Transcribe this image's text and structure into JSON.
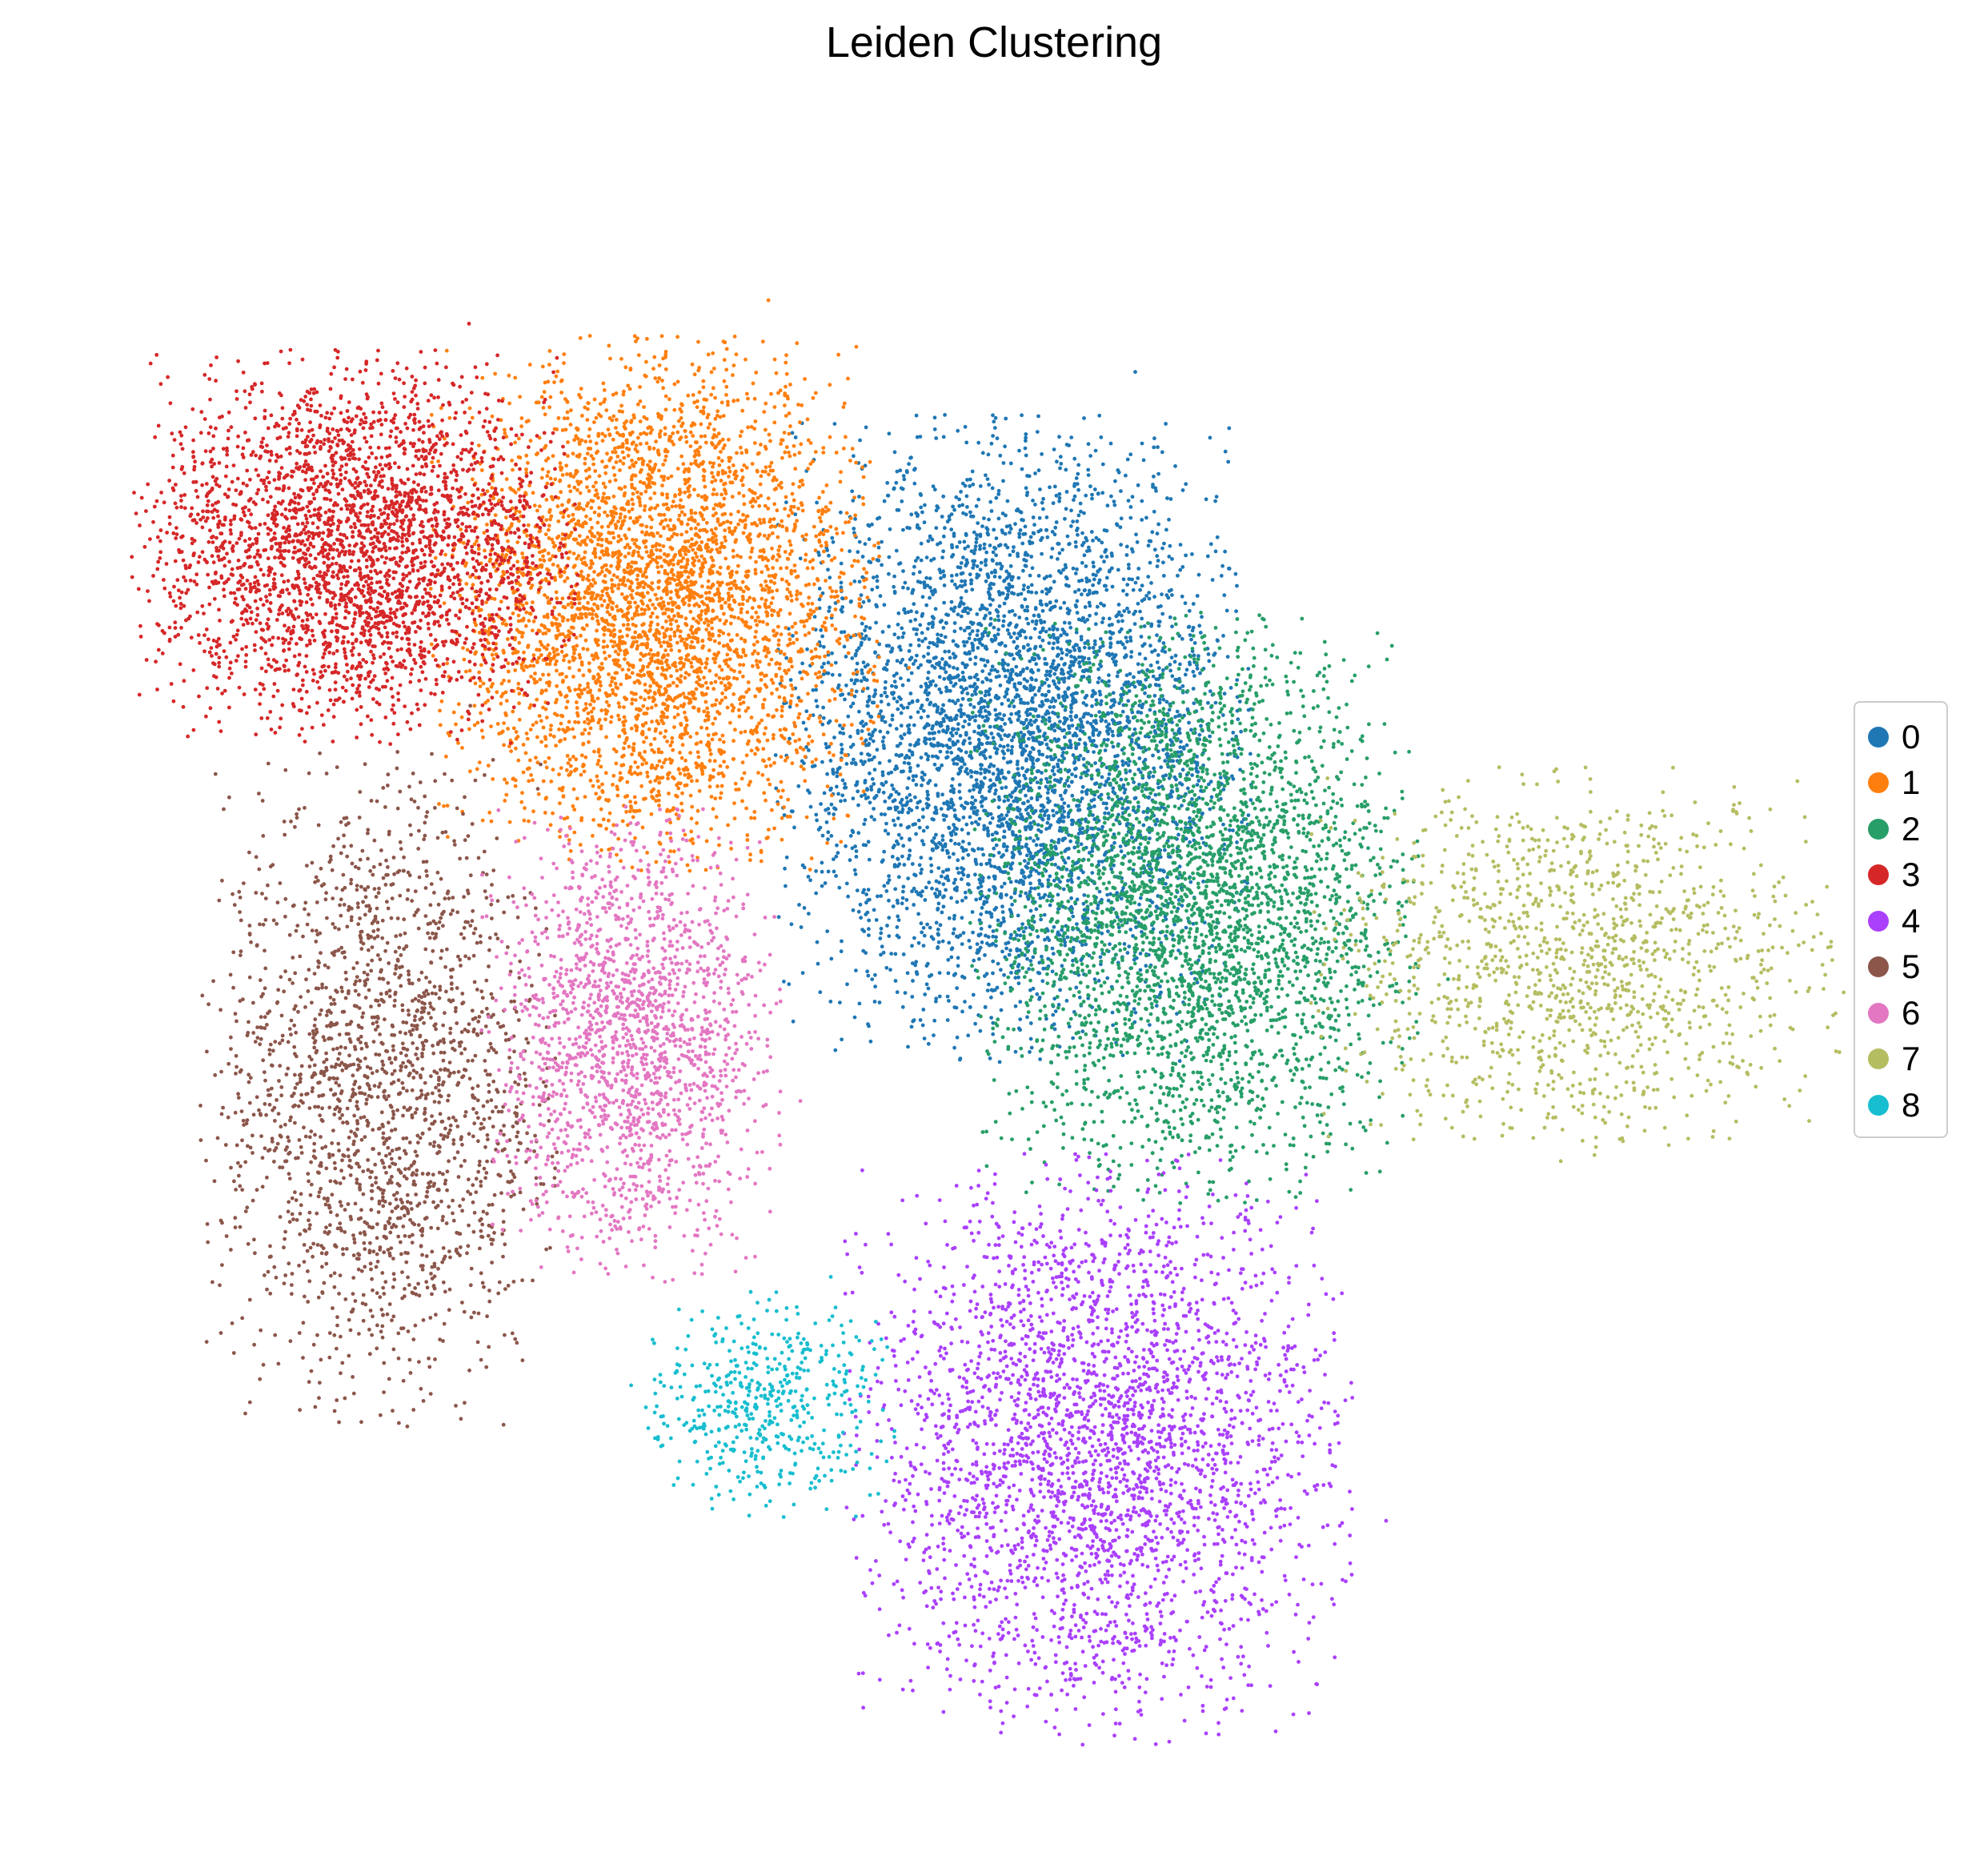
{
  "chart_data": {
    "type": "scatter",
    "title": "Leiden Clustering",
    "xlabel": "",
    "ylabel": "",
    "grid": false,
    "axes_visible": false,
    "legend_position": "right",
    "series": [
      {
        "name": "0",
        "color": "#1f77b4",
        "centroid": [
          6.1,
          7.0
        ],
        "spread": [
          1.6,
          2.3
        ],
        "points": 4500
      },
      {
        "name": "1",
        "color": "#ff7f0e",
        "centroid": [
          3.1,
          8.2
        ],
        "spread": [
          1.5,
          1.9
        ],
        "points": 4000
      },
      {
        "name": "2",
        "color": "#279e68",
        "centroid": [
          7.6,
          5.5
        ],
        "spread": [
          1.5,
          2.1
        ],
        "points": 3500
      },
      {
        "name": "3",
        "color": "#d62728",
        "centroid": [
          0.6,
          8.7
        ],
        "spread": [
          1.5,
          1.4
        ],
        "points": 3000
      },
      {
        "name": "4",
        "color": "#aa40fc",
        "centroid": [
          6.8,
          0.7
        ],
        "spread": [
          1.7,
          2.1
        ],
        "points": 3000
      },
      {
        "name": "5",
        "color": "#8c564b",
        "centroid": [
          0.8,
          3.9
        ],
        "spread": [
          1.2,
          2.4
        ],
        "points": 2000
      },
      {
        "name": "6",
        "color": "#e377c2",
        "centroid": [
          2.9,
          4.3
        ],
        "spread": [
          1.0,
          1.7
        ],
        "points": 1800
      },
      {
        "name": "7",
        "color": "#b5bd61",
        "centroid": [
          10.8,
          5.0
        ],
        "spread": [
          1.8,
          1.4
        ],
        "points": 1300
      },
      {
        "name": "8",
        "color": "#17becf",
        "centroid": [
          4.0,
          1.1
        ],
        "spread": [
          0.9,
          0.8
        ],
        "points": 500
      }
    ],
    "xlim": [
      -1.5,
      13.2
    ],
    "ylim": [
      -2.2,
      12.2
    ]
  }
}
